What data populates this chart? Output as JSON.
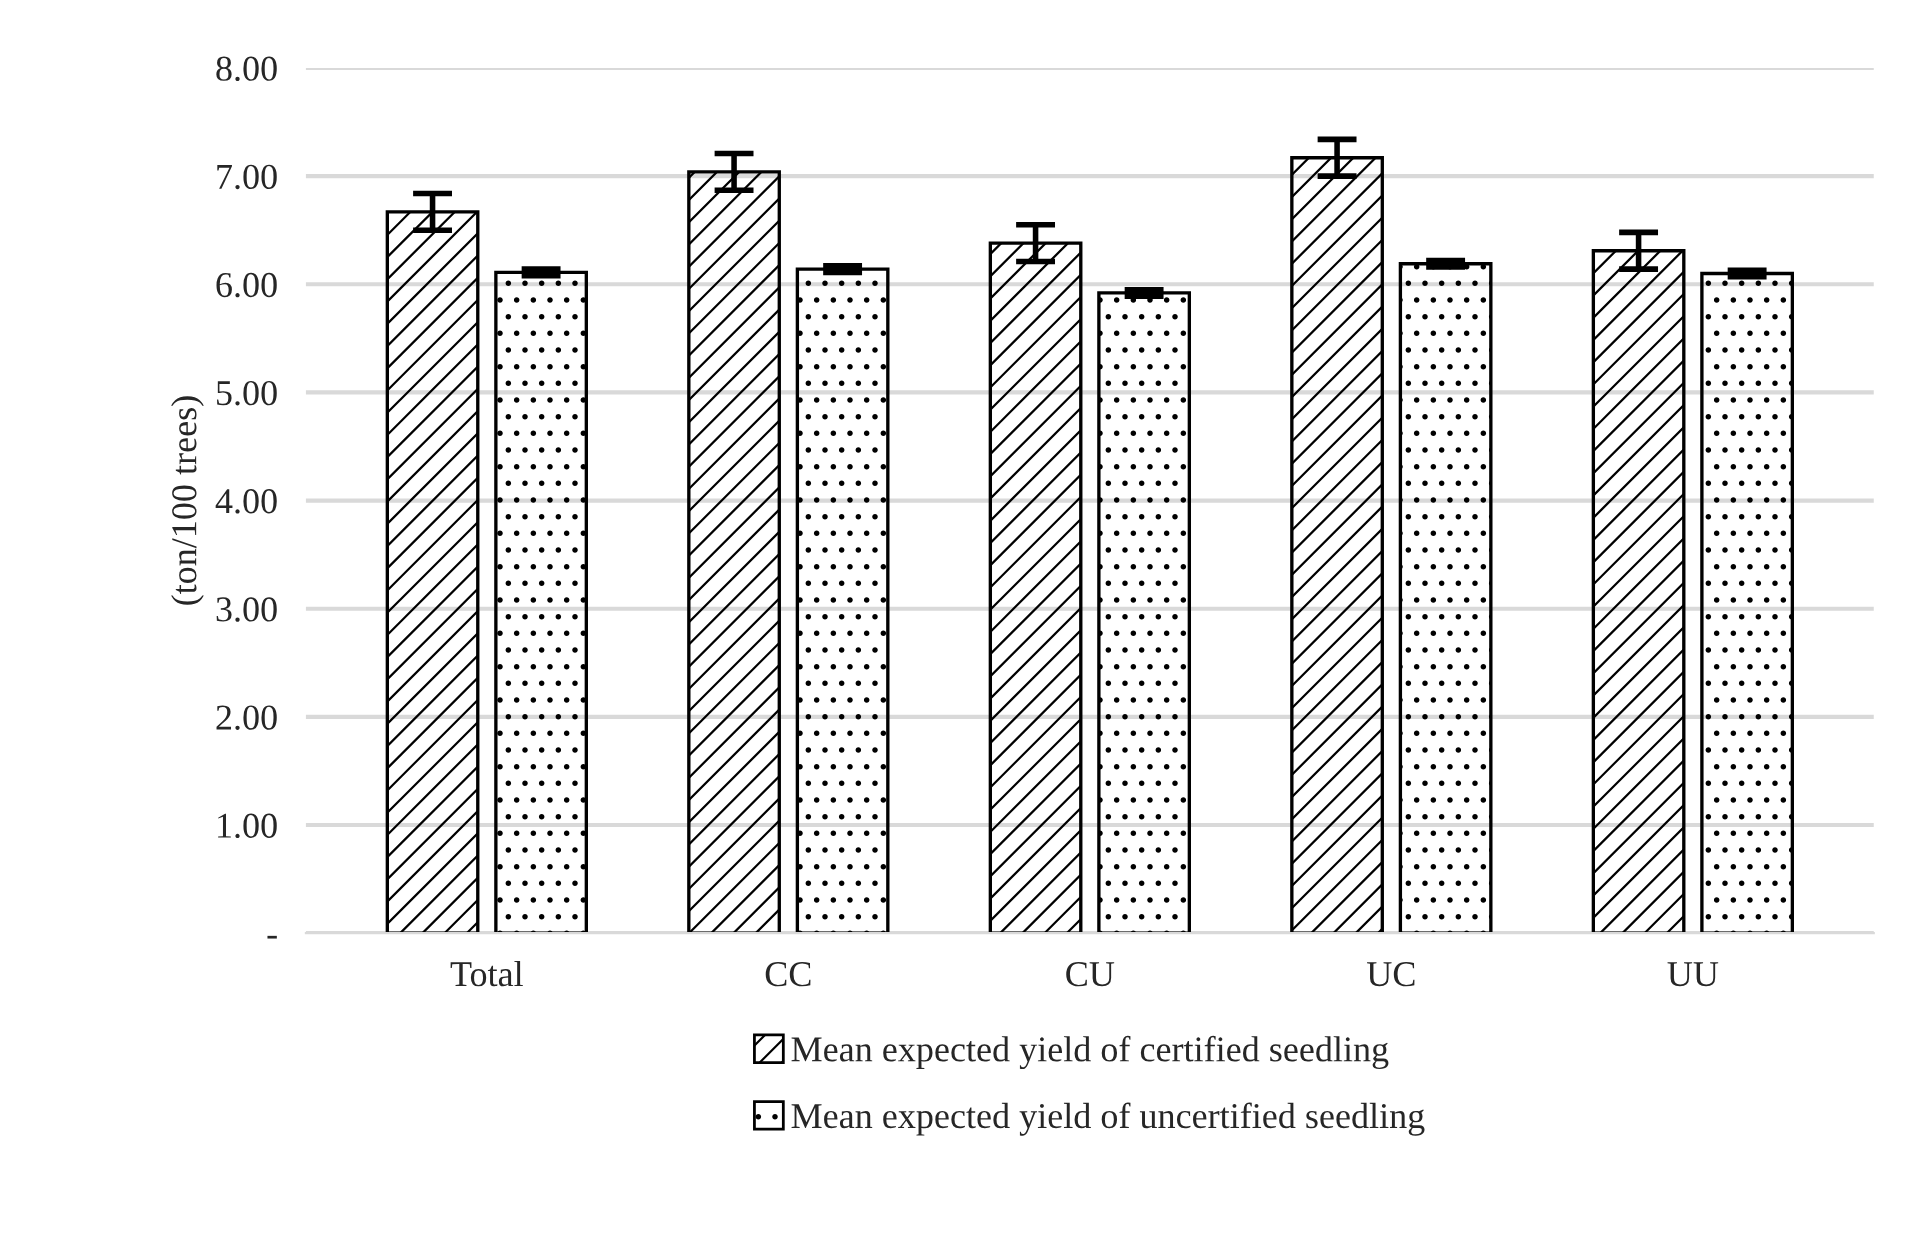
{
  "chart_data": {
    "type": "bar",
    "ylabel": "(ton/100 trees)",
    "categories": [
      "Total",
      "CC",
      "CU",
      "UC",
      "UU"
    ],
    "series": [
      {
        "name": "Mean expected yield of certified seedling",
        "color": "#000000",
        "values": [
          6.67,
          7.04,
          6.38,
          7.17,
          6.31
        ],
        "errors": [
          0.17,
          0.17,
          0.17,
          0.17,
          0.17
        ]
      },
      {
        "name": "Mean expected yield of uncertified seedling",
        "color": "#000000",
        "values": [
          6.11,
          6.14,
          5.92,
          6.19,
          6.1
        ],
        "errors": [
          0.03,
          0.03,
          0.03,
          0.03,
          0.03
        ]
      }
    ],
    "ylim": [
      0,
      8
    ],
    "yticks": [
      {
        "value": 0,
        "label": "-"
      },
      {
        "value": 1,
        "label": "1.00"
      },
      {
        "value": 2,
        "label": "2.00"
      },
      {
        "value": 3,
        "label": "3.00"
      },
      {
        "value": 4,
        "label": "4.00"
      },
      {
        "value": 5,
        "label": "5.00"
      },
      {
        "value": 6,
        "label": "6.00"
      },
      {
        "value": 7,
        "label": "7.00"
      },
      {
        "value": 8,
        "label": "8.00"
      }
    ],
    "grid": "y",
    "legend": "bottom"
  }
}
